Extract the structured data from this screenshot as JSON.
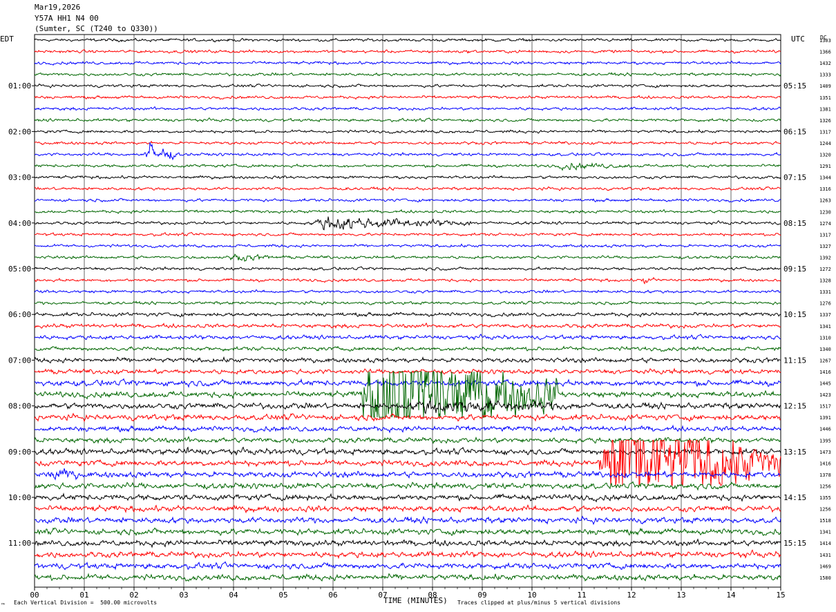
{
  "header": {
    "date": "Mar19,2026",
    "channel": "Y57A HH1 N4 00",
    "location": "(Sumter, SC (T240 to Q330))"
  },
  "left_tz": "EDT",
  "right_tz": "UTC",
  "right_col_label": "DC",
  "footer": {
    "scale_note": "Each Vertical Division =  500.00 microvolts",
    "clip_note": "Traces clipped at plus/minus 5 vertical divisions",
    "corner_mark": "™"
  },
  "colors": {
    "trace_cycle": [
      "#000000",
      "#ff0000",
      "#0000ff",
      "#006600"
    ],
    "grid": "#000000"
  },
  "chart_data": {
    "type": "line",
    "title": "",
    "xlabel": "TIME (MINUTES)",
    "ylabel": "",
    "xlim": [
      0,
      15
    ],
    "x_ticks": [
      "00",
      "01",
      "02",
      "03",
      "04",
      "05",
      "06",
      "07",
      "08",
      "09",
      "10",
      "11",
      "12",
      "13",
      "14",
      "15"
    ],
    "trace_count": 48,
    "traces_per_hour": 4,
    "grid": true,
    "left_hour_labels": [
      {
        "trace": 4,
        "label": "01:00"
      },
      {
        "trace": 8,
        "label": "02:00"
      },
      {
        "trace": 12,
        "label": "03:00"
      },
      {
        "trace": 16,
        "label": "04:00"
      },
      {
        "trace": 20,
        "label": "05:00"
      },
      {
        "trace": 24,
        "label": "06:00"
      },
      {
        "trace": 28,
        "label": "07:00"
      },
      {
        "trace": 32,
        "label": "08:00"
      },
      {
        "trace": 36,
        "label": "09:00"
      },
      {
        "trace": 40,
        "label": "10:00"
      },
      {
        "trace": 44,
        "label": "11:00"
      }
    ],
    "right_hour_labels": [
      {
        "trace": 4,
        "label": "05:15"
      },
      {
        "trace": 8,
        "label": "06:15"
      },
      {
        "trace": 12,
        "label": "07:15"
      },
      {
        "trace": 16,
        "label": "08:15"
      },
      {
        "trace": 20,
        "label": "09:15"
      },
      {
        "trace": 24,
        "label": "10:15"
      },
      {
        "trace": 28,
        "label": "11:15"
      },
      {
        "trace": 32,
        "label": "12:15"
      },
      {
        "trace": 36,
        "label": "13:15"
      },
      {
        "trace": 40,
        "label": "14:15"
      },
      {
        "trace": 44,
        "label": "15:15"
      }
    ],
    "dc_offsets": [
      1303,
      1366,
      1432,
      1333,
      1409,
      1351,
      1381,
      1326,
      1317,
      1244,
      1320,
      1291,
      1344,
      1316,
      1263,
      1230,
      1274,
      1317,
      1327,
      1392,
      1272,
      1328,
      1331,
      1276,
      1337,
      1341,
      1310,
      1340,
      1267,
      1416,
      1445,
      1423,
      1517,
      1391,
      1446,
      1395,
      1473,
      1416,
      1378,
      1256,
      1355,
      1256,
      1518,
      1341,
      1414,
      1431,
      1469,
      1580
    ],
    "noise_levels": [
      1,
      1,
      1,
      1,
      1,
      1,
      1,
      1,
      1,
      1,
      1,
      1,
      1,
      1,
      1,
      1,
      1,
      1,
      1,
      1,
      1,
      1,
      1,
      1,
      1.3,
      1.4,
      1.4,
      1.4,
      1.6,
      1.6,
      2.0,
      2.0,
      2.0,
      2.0,
      1.8,
      1.8,
      2.0,
      2.0,
      2.0,
      2.0,
      2.0,
      2.0,
      2.0,
      2.0,
      2.0,
      2.0,
      2.0,
      2.0
    ],
    "events": [
      {
        "trace": 10,
        "t_start": 2.2,
        "t_end": 2.9,
        "amplitude": 12,
        "note": "local burst"
      },
      {
        "trace": 11,
        "t_start": 10.5,
        "t_end": 12.0,
        "amplitude": 2.5,
        "note": "low emergent signal"
      },
      {
        "trace": 16,
        "t_start": 5.5,
        "t_end": 8.9,
        "amplitude": 6,
        "note": "regional signal"
      },
      {
        "trace": 19,
        "t_start": 3.9,
        "t_end": 5.0,
        "amplitude": 2.5,
        "note": "weak signal"
      },
      {
        "trace": 21,
        "t_start": 12.2,
        "t_end": 12.5,
        "amplitude": 3,
        "note": "short pulse"
      },
      {
        "trace": 31,
        "t_start": 6.5,
        "t_end": 10.5,
        "amplitude": 80,
        "note": "clipped earthquake"
      },
      {
        "trace": 32,
        "t_start": 7.5,
        "t_end": 11.0,
        "amplitude": 5,
        "note": "coda"
      },
      {
        "trace": 37,
        "t_start": 11.3,
        "t_end": 15.0,
        "amplitude": 80,
        "note": "clipped earthquake"
      },
      {
        "trace": 36,
        "t_start": 3.0,
        "t_end": 3.1,
        "amplitude": 8,
        "note": "spike"
      },
      {
        "trace": 38,
        "t_start": 0.3,
        "t_end": 0.9,
        "amplitude": 6,
        "note": "burst"
      }
    ],
    "clip_divisions": 5,
    "scale_microvolts_per_division": 500
  }
}
